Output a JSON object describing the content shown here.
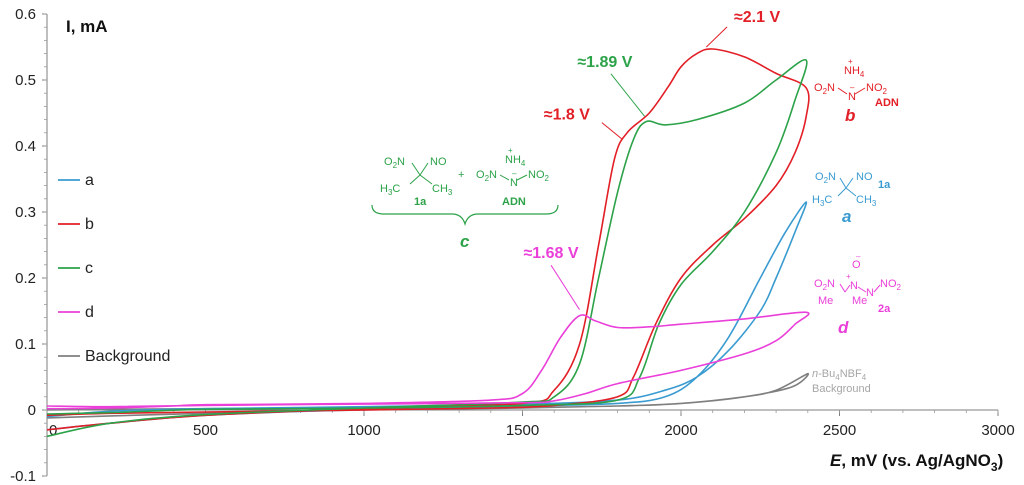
{
  "chart_data": {
    "type": "line",
    "title": "",
    "ylabel": "I, mA",
    "xlabel_prefix": "E",
    "xlabel_rest": ", mV (vs. Ag/AgNO",
    "xlabel_sub": "3",
    "xlabel_close": ")",
    "xlim": [
      0,
      3000
    ],
    "ylim": [
      -0.1,
      0.6
    ],
    "x_ticks": [
      0,
      500,
      1000,
      1500,
      2000,
      2500,
      3000
    ],
    "x_tick_labels": [
      "0",
      "500",
      "1000",
      "1500",
      "2000",
      "2500",
      "3000"
    ],
    "y_ticks": [
      -0.1,
      0,
      0.1,
      0.2,
      0.3,
      0.4,
      0.5,
      0.6
    ],
    "y_tick_labels": [
      "-0.1",
      "0",
      "0.1",
      "0.2",
      "0.3",
      "0.4",
      "0.5",
      "0.6"
    ],
    "legend": [
      {
        "key": "a",
        "label": "a",
        "color": "#3a9bd1"
      },
      {
        "key": "b",
        "label": "b",
        "color": "#e21f26"
      },
      {
        "key": "c",
        "label": "c",
        "color": "#2ca249"
      },
      {
        "key": "d",
        "label": "d",
        "color": "#ea3fd9"
      },
      {
        "key": "bg",
        "label": "Background",
        "color": "#7f7f7f"
      }
    ],
    "series": [
      {
        "name": "Background",
        "color": "#7f7f7f",
        "points": [
          [
            0,
            -0.012
          ],
          [
            200,
            -0.009
          ],
          [
            500,
            -0.005
          ],
          [
            1000,
            0.0
          ],
          [
            1500,
            0.003
          ],
          [
            1800,
            0.006
          ],
          [
            2000,
            0.01
          ],
          [
            2200,
            0.02
          ],
          [
            2300,
            0.03
          ],
          [
            2400,
            0.055
          ],
          [
            2350,
            0.035
          ],
          [
            2200,
            0.02
          ],
          [
            2000,
            0.01
          ],
          [
            1800,
            0.006
          ],
          [
            1500,
            0.004
          ],
          [
            1000,
            0.003
          ],
          [
            500,
            0.002
          ],
          [
            200,
            0.001
          ],
          [
            0,
            0.0
          ]
        ]
      },
      {
        "name": "a",
        "color": "#3a9bd1",
        "points": [
          [
            0,
            -0.03
          ],
          [
            200,
            -0.02
          ],
          [
            500,
            -0.008
          ],
          [
            1000,
            0.001
          ],
          [
            1500,
            0.006
          ],
          [
            1800,
            0.01
          ],
          [
            1950,
            0.02
          ],
          [
            2050,
            0.05
          ],
          [
            2150,
            0.11
          ],
          [
            2250,
            0.2
          ],
          [
            2330,
            0.27
          ],
          [
            2395,
            0.315
          ],
          [
            2360,
            0.27
          ],
          [
            2300,
            0.2
          ],
          [
            2250,
            0.15
          ],
          [
            2150,
            0.09
          ],
          [
            2050,
            0.05
          ],
          [
            1950,
            0.03
          ],
          [
            1800,
            0.015
          ],
          [
            1500,
            0.009
          ],
          [
            1000,
            0.005
          ],
          [
            500,
            0.002
          ],
          [
            200,
            -0.002
          ],
          [
            0,
            -0.01
          ]
        ]
      },
      {
        "name": "b",
        "color": "#e21f26",
        "points": [
          [
            0,
            -0.03
          ],
          [
            200,
            -0.02
          ],
          [
            500,
            -0.008
          ],
          [
            1000,
            0.002
          ],
          [
            1500,
            0.01
          ],
          [
            1600,
            0.03
          ],
          [
            1680,
            0.1
          ],
          [
            1740,
            0.25
          ],
          [
            1790,
            0.38
          ],
          [
            1830,
            0.42
          ],
          [
            1900,
            0.45
          ],
          [
            1960,
            0.49
          ],
          [
            2000,
            0.52
          ],
          [
            2050,
            0.54
          ],
          [
            2100,
            0.547
          ],
          [
            2200,
            0.535
          ],
          [
            2300,
            0.51
          ],
          [
            2395,
            0.488
          ],
          [
            2395,
            0.445
          ],
          [
            2360,
            0.39
          ],
          [
            2300,
            0.34
          ],
          [
            2200,
            0.29
          ],
          [
            2100,
            0.25
          ],
          [
            2000,
            0.2
          ],
          [
            1920,
            0.13
          ],
          [
            1850,
            0.05
          ],
          [
            1800,
            0.02
          ],
          [
            1600,
            0.007
          ],
          [
            1400,
            0.003
          ],
          [
            1000,
            0.0
          ],
          [
            500,
            -0.003
          ],
          [
            200,
            -0.005
          ],
          [
            0,
            -0.008
          ]
        ]
      },
      {
        "name": "c",
        "color": "#2ca249",
        "points": [
          [
            0,
            -0.04
          ],
          [
            200,
            -0.02
          ],
          [
            500,
            -0.007
          ],
          [
            1000,
            0.003
          ],
          [
            1500,
            0.012
          ],
          [
            1600,
            0.02
          ],
          [
            1680,
            0.07
          ],
          [
            1740,
            0.2
          ],
          [
            1800,
            0.33
          ],
          [
            1850,
            0.41
          ],
          [
            1890,
            0.437
          ],
          [
            1950,
            0.432
          ],
          [
            2050,
            0.44
          ],
          [
            2200,
            0.465
          ],
          [
            2300,
            0.5
          ],
          [
            2395,
            0.53
          ],
          [
            2360,
            0.47
          ],
          [
            2300,
            0.39
          ],
          [
            2200,
            0.3
          ],
          [
            2100,
            0.24
          ],
          [
            2000,
            0.19
          ],
          [
            1930,
            0.13
          ],
          [
            1870,
            0.05
          ],
          [
            1800,
            0.015
          ],
          [
            1500,
            0.007
          ],
          [
            1000,
            0.003
          ],
          [
            500,
            0.001
          ],
          [
            200,
            -0.004
          ],
          [
            0,
            -0.006
          ]
        ]
      },
      {
        "name": "d",
        "color": "#ea3fd9",
        "points": [
          [
            0,
            0.002
          ],
          [
            200,
            0.003
          ],
          [
            400,
            0.006
          ],
          [
            500,
            0.008
          ],
          [
            1000,
            0.01
          ],
          [
            1400,
            0.015
          ],
          [
            1500,
            0.025
          ],
          [
            1560,
            0.06
          ],
          [
            1620,
            0.11
          ],
          [
            1680,
            0.143
          ],
          [
            1730,
            0.135
          ],
          [
            1800,
            0.125
          ],
          [
            1900,
            0.126
          ],
          [
            2000,
            0.13
          ],
          [
            2200,
            0.138
          ],
          [
            2395,
            0.148
          ],
          [
            2360,
            0.13
          ],
          [
            2300,
            0.105
          ],
          [
            2200,
            0.085
          ],
          [
            2000,
            0.06
          ],
          [
            1800,
            0.04
          ],
          [
            1700,
            0.025
          ],
          [
            1600,
            0.014
          ],
          [
            1500,
            0.011
          ],
          [
            1000,
            0.009
          ],
          [
            500,
            0.007
          ],
          [
            200,
            0.005
          ],
          [
            0,
            0.006
          ]
        ]
      }
    ],
    "annotations": [
      {
        "text": "≈2.1 V",
        "color": "#e21f26",
        "x": 2240,
        "y": 0.588,
        "tx": 2080,
        "ty": 0.55
      },
      {
        "text": "≈1.89 V",
        "color": "#2ca249",
        "x": 1760,
        "y": 0.52,
        "tx": 1885,
        "ty": 0.445
      },
      {
        "text": "≈1.8 V",
        "color": "#e21f26",
        "x": 1640,
        "y": 0.44,
        "tx": 1815,
        "ty": 0.41
      },
      {
        "text": "≈1.68 V",
        "color": "#ea3fd9",
        "x": 1590,
        "y": 0.23,
        "tx": 1680,
        "ty": 0.152
      }
    ]
  },
  "structures": {
    "adn_b": {
      "cation": "NH",
      "cation_sub": "4",
      "cation_charge": "+",
      "left_no2": "O",
      "left_no2_sub": "2",
      "left_no2_n": "N",
      "center_n": "N",
      "center_charge": "–",
      "right_no2": "NO",
      "right_no2_sub": "2",
      "letter": "b",
      "name": "ADN",
      "color": "#e21f26"
    },
    "comp_1a": {
      "no2": "O",
      "no2_sub": "2",
      "no2_n": "N",
      "no": "NO",
      "ch3_left": "H",
      "ch3_left_sub": "3",
      "ch3_left_c": "C",
      "ch3_right": "CH",
      "ch3_right_sub": "3",
      "letter": "a",
      "name": "1a",
      "color": "#3a9bd1"
    },
    "mix_c": {
      "plus": "+",
      "name_1a": "1a",
      "name_adn": "ADN",
      "letter": "c",
      "color": "#2ca249"
    },
    "comp_2a": {
      "oxide": "O",
      "oxide_charge": "–",
      "n_plus": "+",
      "no2": "NO",
      "no2_sub": "2",
      "me_left": "Me",
      "me_right": "Me",
      "letter": "d",
      "name": "2a",
      "color": "#ea3fd9"
    },
    "background": {
      "line1_prefix": "n",
      "line1_rest": "-Bu",
      "line1_sub": "4",
      "line1_end": "NBF",
      "line1_sub2": "4",
      "line2": "Background",
      "color": "#a6a6a6"
    }
  }
}
